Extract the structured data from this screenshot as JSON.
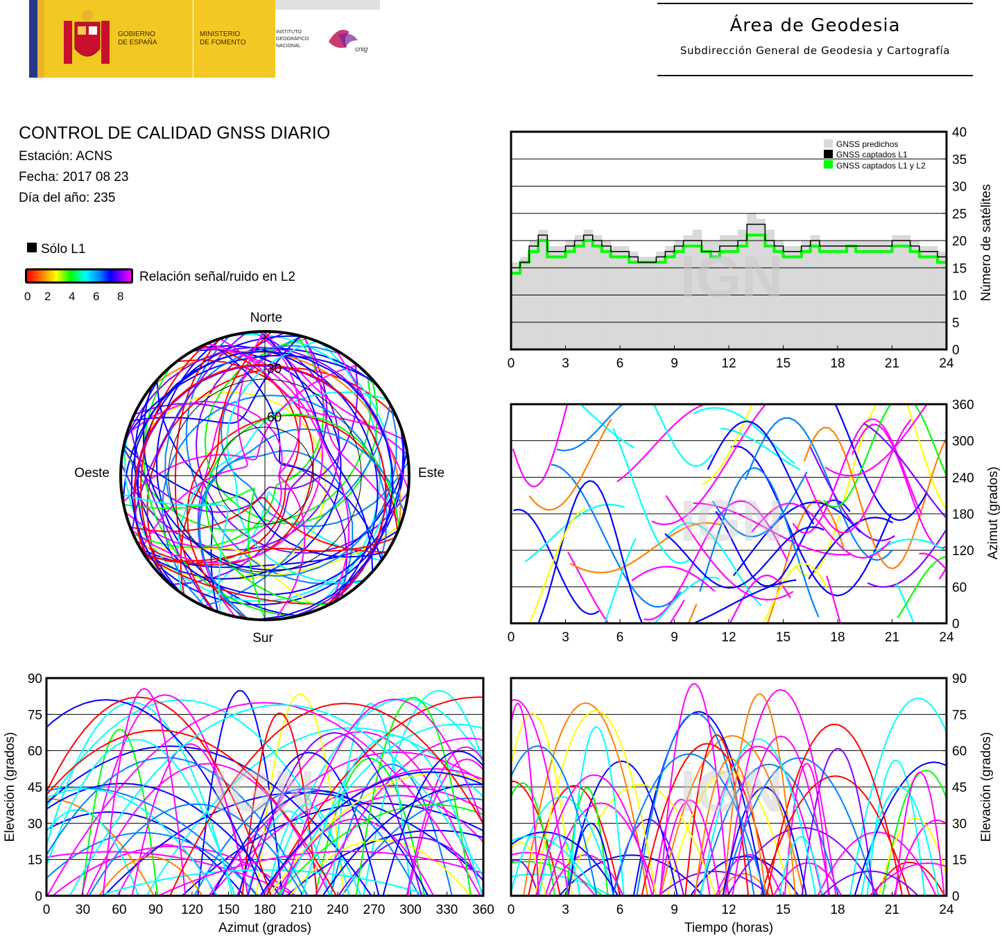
{
  "header": {
    "gobierno": [
      "GOBIERNO",
      "DE ESPAÑA"
    ],
    "ministerio": [
      "MINISTERIO",
      "DE FOMENTO"
    ],
    "instituto": [
      "INSTITUTO",
      "GEOGRÁFICO",
      "NACIONAL"
    ],
    "cnig": "cnig",
    "area_title": "Área de Geodesia",
    "area_subtitle": "Subdirección General de Geodesia y Cartografía"
  },
  "info": {
    "title": "CONTROL DE CALIDAD GNSS DIARIO",
    "station": "Estación: ACNS",
    "date": "Fecha: 2017 08 23",
    "doy": "Día del año: 235"
  },
  "legend": {
    "only_l1": "Sólo L1",
    "snr_label": "Relación señal/ruido en L2",
    "ticks": [
      "0",
      "2",
      "4",
      "6",
      "8"
    ]
  },
  "watermark": "IGN",
  "colors": {
    "predicted": "#d9d9d9",
    "l1": "#000000",
    "l1l2": "#00ff00",
    "snr_scale": [
      "#ff0000",
      "#ff8000",
      "#ffff00",
      "#00ff00",
      "#00ffff",
      "#0080ff",
      "#0000ff",
      "#8000ff",
      "#ff00ff"
    ]
  },
  "chart_data": [
    {
      "id": "satellites",
      "type": "line",
      "ylabel": "Número de satélites",
      "xlim": [
        0,
        24
      ],
      "ylim": [
        0,
        40
      ],
      "xticks": [
        "0",
        "3",
        "6",
        "9",
        "12",
        "15",
        "18",
        "21",
        "24"
      ],
      "yticks": [
        "0",
        "5",
        "10",
        "15",
        "20",
        "25",
        "30",
        "35",
        "40"
      ],
      "grid": true,
      "legend_position": "top-right",
      "legend": [
        "GNSS predichos",
        "GNSS captados L1",
        "GNSS captados L1 y L2"
      ],
      "x": [
        0,
        0.5,
        1,
        1.5,
        2,
        2.5,
        3,
        3.5,
        4,
        4.5,
        5,
        5.5,
        6,
        6.5,
        7,
        7.5,
        8,
        8.5,
        9,
        9.5,
        10,
        10.5,
        11,
        11.5,
        12,
        12.5,
        13,
        13.5,
        14,
        14.5,
        15,
        15.5,
        16,
        16.5,
        17,
        17.5,
        18,
        18.5,
        19,
        19.5,
        20,
        20.5,
        21,
        21.5,
        22,
        22.5,
        23,
        23.5,
        24
      ],
      "series": [
        {
          "name": "GNSS predichos",
          "values": [
            16,
            17,
            20,
            22,
            19,
            19,
            20,
            21,
            22,
            21,
            20,
            19,
            19,
            18,
            17,
            17,
            18,
            19,
            20,
            21,
            22,
            20,
            20,
            21,
            21,
            22,
            25,
            24,
            22,
            20,
            19,
            19,
            20,
            21,
            20,
            20,
            20,
            20,
            20,
            20,
            20,
            20,
            21,
            21,
            20,
            19,
            19,
            18,
            16
          ]
        },
        {
          "name": "GNSS captados L1",
          "values": [
            15,
            16,
            19,
            21,
            18,
            18,
            19,
            20,
            21,
            20,
            19,
            18,
            18,
            17,
            16,
            16,
            17,
            18,
            19,
            20,
            20,
            18,
            18,
            19,
            19,
            20,
            23,
            23,
            20,
            19,
            18,
            18,
            19,
            20,
            19,
            19,
            19,
            19,
            19,
            19,
            19,
            19,
            20,
            20,
            19,
            18,
            18,
            17,
            15
          ]
        },
        {
          "name": "GNSS captados L1 y L2",
          "values": [
            14,
            16,
            18,
            20,
            17,
            17,
            18,
            19,
            20,
            19,
            18,
            17,
            17,
            16,
            16,
            16,
            16,
            17,
            18,
            19,
            19,
            18,
            17,
            18,
            18,
            19,
            21,
            21,
            19,
            18,
            17,
            17,
            18,
            19,
            18,
            18,
            18,
            19,
            18,
            18,
            18,
            18,
            19,
            19,
            18,
            17,
            17,
            16,
            14
          ]
        }
      ]
    },
    {
      "id": "skyplot",
      "type": "scatter",
      "labels": {
        "north": "Norte",
        "south": "Sur",
        "east": "Este",
        "west": "Oeste"
      },
      "rings": [
        "30",
        "60"
      ]
    },
    {
      "id": "azimut_time",
      "type": "scatter",
      "ylabel": "Azimut (grados)",
      "xlim": [
        0,
        24
      ],
      "ylim": [
        0,
        360
      ],
      "xticks": [
        "0",
        "3",
        "6",
        "9",
        "12",
        "15",
        "18",
        "21",
        "24"
      ],
      "yticks": [
        "0",
        "60",
        "120",
        "180",
        "240",
        "300",
        "360"
      ],
      "grid": true
    },
    {
      "id": "elev_azimut",
      "type": "scatter",
      "xlabel": "Azimut (grados)",
      "ylabel": "Elevación (grados)",
      "xlim": [
        0,
        360
      ],
      "ylim": [
        0,
        90
      ],
      "xticks": [
        "0",
        "30",
        "60",
        "90",
        "120",
        "150",
        "180",
        "210",
        "240",
        "270",
        "300",
        "330",
        "360"
      ],
      "yticks": [
        "0",
        "15",
        "30",
        "45",
        "60",
        "75",
        "90"
      ],
      "grid": true
    },
    {
      "id": "elev_time",
      "type": "scatter",
      "xlabel": "Tiempo (horas)",
      "ylabel": "Elevación (grados)",
      "xlim": [
        0,
        24
      ],
      "ylim": [
        0,
        90
      ],
      "xticks": [
        "0",
        "3",
        "6",
        "9",
        "12",
        "15",
        "18",
        "21",
        "24"
      ],
      "yticks": [
        "0",
        "15",
        "30",
        "45",
        "60",
        "75",
        "90"
      ],
      "grid": true
    }
  ]
}
